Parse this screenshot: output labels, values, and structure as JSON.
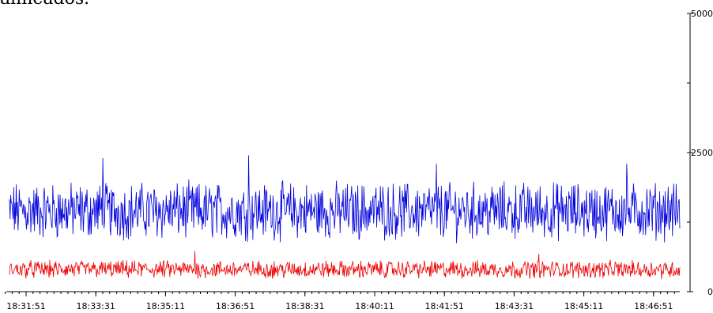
{
  "caption_fragment": "alineados.",
  "chart_data": {
    "type": "line",
    "x_tick_labels": [
      "18:31:51",
      "18:33:31",
      "18:35:11",
      "18:36:51",
      "18:38:31",
      "18:40:11",
      "18:41:51",
      "18:43:31",
      "18:45:11",
      "18:46:51"
    ],
    "y_tick_labels": [
      "0",
      "2500",
      "5000"
    ],
    "ylim": [
      0,
      5000
    ],
    "y_axis_side": "right",
    "grid": false,
    "series": [
      {
        "color": "#0000dd",
        "mean": 1450,
        "amplitude": 420,
        "peaks": [
          2400,
          2450,
          2300,
          2300
        ]
      },
      {
        "color": "#ee0000",
        "mean": 400,
        "amplitude": 130,
        "peaks": [
          730,
          680
        ]
      }
    ]
  }
}
